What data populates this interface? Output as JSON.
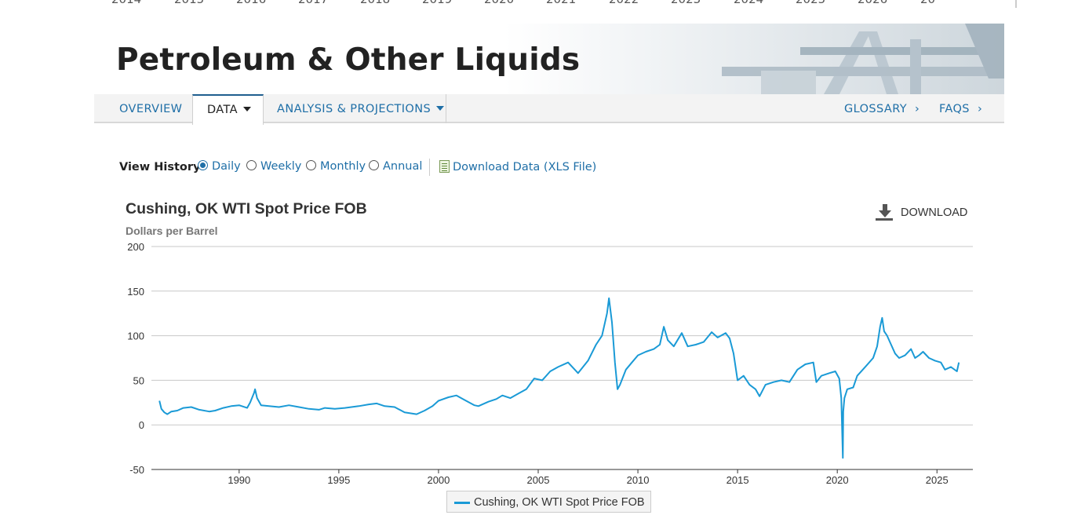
{
  "top_strip_years": [
    "2014",
    "2015",
    "2016",
    "2017",
    "2018",
    "2019",
    "2020",
    "2021",
    "2022",
    "2023",
    "2024",
    "2025",
    "2026",
    "20"
  ],
  "banner": {
    "title": "Petroleum & Other Liquids"
  },
  "nav": {
    "overview": "OVERVIEW",
    "data": "DATA",
    "analysis": "ANALYSIS & PROJECTIONS",
    "glossary": "GLOSSARY",
    "faqs": "FAQS",
    "chevron": "›"
  },
  "history": {
    "label": "View History:",
    "options": [
      {
        "label": "Daily",
        "selected": true
      },
      {
        "label": "Weekly",
        "selected": false
      },
      {
        "label": "Monthly",
        "selected": false
      },
      {
        "label": "Annual",
        "selected": false
      }
    ],
    "download_link": "Download Data (XLS File)"
  },
  "download_button": "DOWNLOAD",
  "colors": {
    "series": "#1a9ad6",
    "link": "#1f6fa7",
    "grid": "#c8c8c8"
  },
  "chart_data": {
    "type": "line",
    "title": "Cushing, OK WTI Spot Price FOB",
    "ylabel": "Dollars per Barrel",
    "xlabel": "",
    "ylim": [
      -50,
      200
    ],
    "yticks": [
      -50,
      0,
      50,
      100,
      150,
      200
    ],
    "xlim": [
      1985.6,
      2026.8
    ],
    "xticks": [
      1990,
      1995,
      2000,
      2005,
      2010,
      2015,
      2020,
      2025
    ],
    "grid": "horizontal",
    "legend": "bottom-center",
    "series": [
      {
        "name": "Cushing, OK WTI Spot Price FOB",
        "x": [
          1986.0,
          1986.1,
          1986.25,
          1986.4,
          1986.6,
          1986.9,
          1987.2,
          1987.6,
          1988.0,
          1988.5,
          1988.8,
          1989.2,
          1989.6,
          1990.0,
          1990.4,
          1990.55,
          1990.75,
          1990.8,
          1990.9,
          1991.1,
          1991.5,
          1992.0,
          1992.5,
          1993.0,
          1993.5,
          1994.0,
          1994.3,
          1994.8,
          1995.3,
          1996.0,
          1996.5,
          1996.9,
          1997.3,
          1997.8,
          1998.3,
          1998.9,
          1999.3,
          1999.7,
          2000.0,
          2000.5,
          2000.9,
          2001.3,
          2001.8,
          2002.0,
          2002.5,
          2002.9,
          2003.2,
          2003.6,
          2004.0,
          2004.4,
          2004.8,
          2005.2,
          2005.6,
          2006.0,
          2006.5,
          2007.0,
          2007.5,
          2007.9,
          2008.2,
          2008.45,
          2008.55,
          2008.7,
          2008.85,
          2008.98,
          2009.1,
          2009.4,
          2009.7,
          2010.0,
          2010.4,
          2010.8,
          2011.1,
          2011.3,
          2011.5,
          2011.8,
          2012.2,
          2012.5,
          2012.9,
          2013.3,
          2013.7,
          2014.0,
          2014.4,
          2014.6,
          2014.8,
          2015.0,
          2015.3,
          2015.6,
          2015.9,
          2016.1,
          2016.4,
          2016.8,
          2017.2,
          2017.6,
          2018.0,
          2018.4,
          2018.8,
          2018.95,
          2019.2,
          2019.6,
          2019.9,
          2020.1,
          2020.2,
          2020.28,
          2020.3,
          2020.36,
          2020.5,
          2020.8,
          2021.0,
          2021.4,
          2021.8,
          2022.0,
          2022.15,
          2022.25,
          2022.35,
          2022.5,
          2022.7,
          2022.9,
          2023.1,
          2023.4,
          2023.7,
          2023.9,
          2024.1,
          2024.3,
          2024.6,
          2024.9,
          2025.2,
          2025.4,
          2025.7,
          2026.0,
          2026.1
        ],
        "values": [
          27,
          18,
          14,
          12,
          15,
          16,
          19,
          20,
          17,
          15,
          16,
          19,
          21,
          22,
          19,
          25,
          36,
          40,
          30,
          22,
          21,
          20,
          22,
          20,
          18,
          17,
          19,
          18,
          19,
          21,
          23,
          24,
          21,
          20,
          14,
          12,
          16,
          21,
          27,
          31,
          33,
          28,
          22,
          21,
          26,
          29,
          33,
          30,
          35,
          40,
          52,
          50,
          60,
          65,
          70,
          58,
          72,
          90,
          100,
          125,
          142,
          115,
          70,
          40,
          45,
          62,
          70,
          78,
          82,
          85,
          90,
          110,
          95,
          88,
          103,
          88,
          90,
          93,
          104,
          98,
          103,
          97,
          80,
          50,
          55,
          45,
          40,
          32,
          45,
          48,
          50,
          48,
          62,
          68,
          70,
          48,
          55,
          58,
          60,
          52,
          30,
          -37,
          15,
          30,
          40,
          42,
          55,
          65,
          75,
          88,
          110,
          120,
          105,
          100,
          90,
          80,
          75,
          78,
          85,
          75,
          78,
          82,
          75,
          72,
          70,
          62,
          65,
          60,
          70
        ]
      }
    ]
  }
}
